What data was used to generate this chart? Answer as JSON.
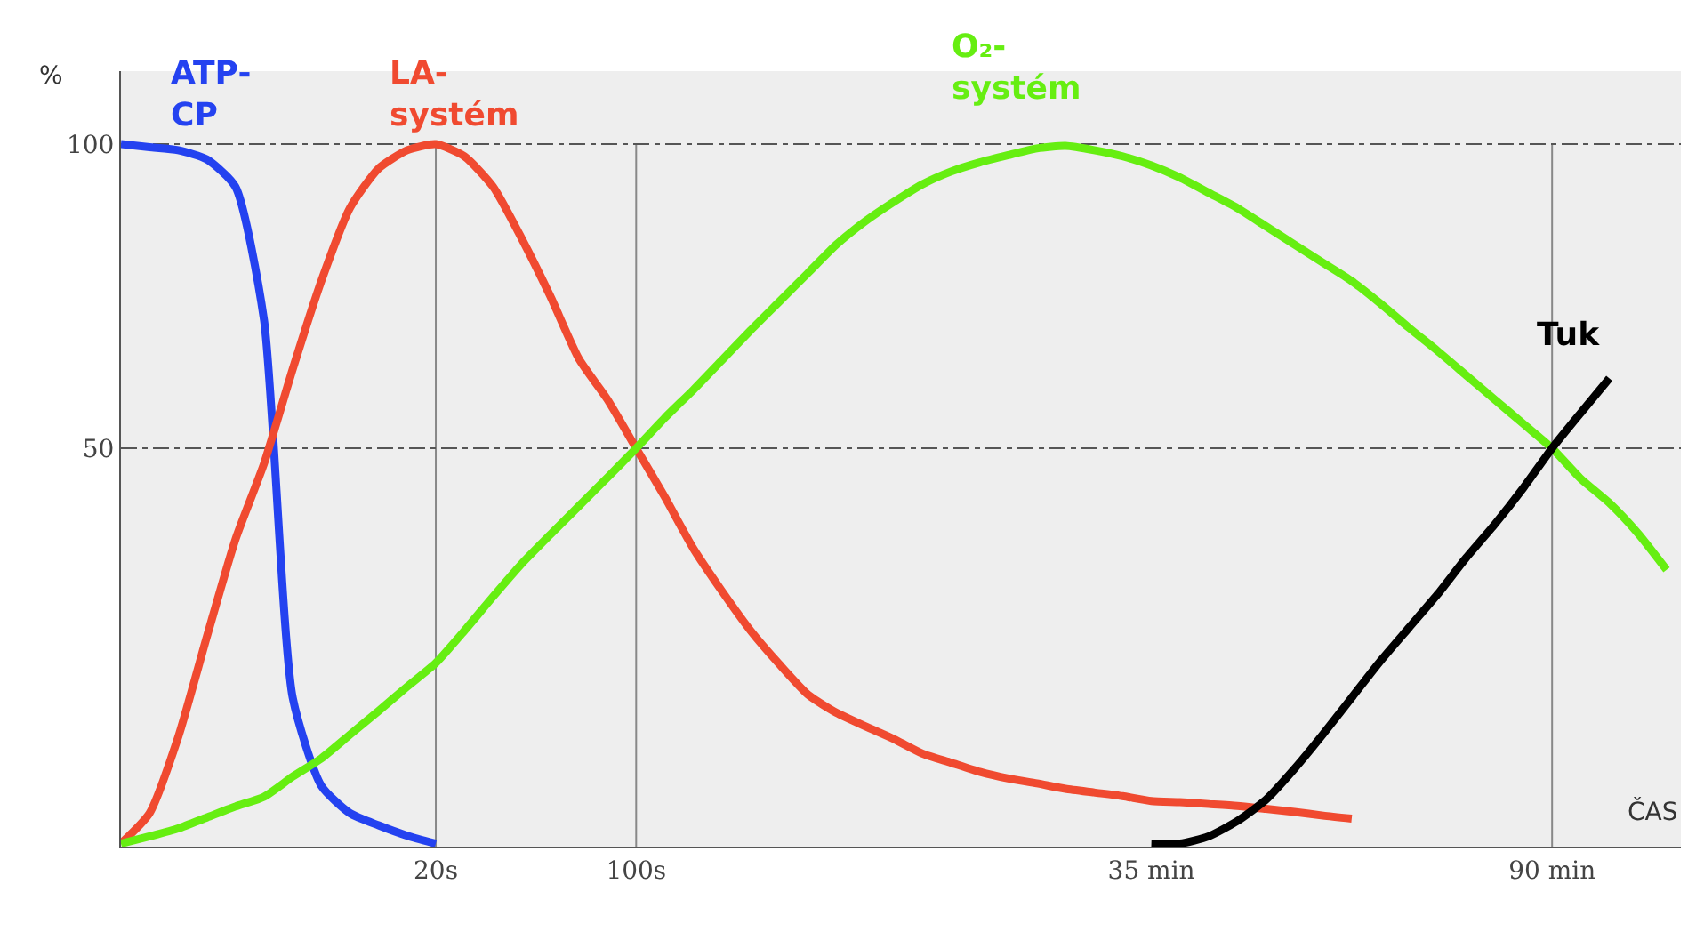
{
  "chart_data": {
    "type": "line",
    "xlabel": "ČAS",
    "ylabel": "%",
    "categories": [
      null,
      null,
      null,
      null,
      null,
      null,
      null,
      null,
      null,
      null,
      null,
      "20s",
      null,
      null,
      null,
      null,
      null,
      null,
      "100s",
      null,
      null,
      null,
      null,
      null,
      null,
      null,
      null,
      null,
      null,
      null,
      null,
      null,
      null,
      null,
      null,
      null,
      "35 min",
      null,
      null,
      null,
      null,
      null,
      null,
      null,
      null,
      null,
      null,
      null,
      null,
      null,
      "90 min",
      null,
      null,
      null,
      null
    ],
    "ylim": [
      -15.5,
      112
    ],
    "yticks": [
      50,
      100
    ],
    "grid": "y",
    "line_style": "solid",
    "marker": "none",
    "legend": false,
    "ref_lines": [
      {
        "axis": "x",
        "value": "20s",
        "color": "#888888"
      },
      {
        "axis": "x",
        "value": "100s",
        "color": "#888888"
      },
      {
        "axis": "x",
        "value": "90 min",
        "color": "#888888"
      }
    ],
    "series": [
      {
        "name": "ATP-CP",
        "color": "#2442f0",
        "values": [
          100,
          99.5,
          99,
          97.5,
          93,
          71,
          9,
          -5.5,
          -10,
          -12,
          -13.7,
          -15,
          null,
          null,
          null,
          null,
          null,
          null,
          null,
          null,
          null,
          null,
          null,
          null,
          null,
          null,
          null,
          null,
          null,
          null,
          null,
          null,
          null,
          null,
          null,
          null,
          null,
          null,
          null,
          null,
          null,
          null,
          null,
          null,
          null,
          null,
          null,
          null,
          null,
          null,
          null,
          null,
          null,
          null,
          null
        ]
      },
      {
        "name": "LA-systém",
        "color": "#f04a30",
        "values": [
          -15,
          -10,
          2.5,
          19,
          35,
          47.5,
          63,
          77.5,
          89.5,
          96,
          99,
          100,
          98,
          93,
          84.5,
          75,
          64.7,
          58,
          50,
          42,
          33.5,
          26.5,
          20,
          14.5,
          9.5,
          6.5,
          4.3,
          2.2,
          -0.2,
          -1.7,
          -3.2,
          -4.3,
          -5.1,
          -6,
          -6.6,
          -7.2,
          -8,
          -8.2,
          -8.5,
          -8.8,
          -9.3,
          -9.8,
          -10.4,
          -10.9,
          null,
          null,
          null,
          null,
          null,
          null,
          null,
          null,
          null,
          null,
          null
        ]
      },
      {
        "name": "O₂-systém",
        "color": "#66ee11",
        "values": [
          -15,
          -13.8,
          -12.5,
          -10.7,
          -8.9,
          -7.3,
          -4,
          -1,
          2.9,
          6.8,
          10.8,
          14.7,
          20,
          25.6,
          31,
          35.8,
          40.5,
          45.2,
          50,
          55,
          59.6,
          64.5,
          69.4,
          74.1,
          78.8,
          83.5,
          87.3,
          90.5,
          93.4,
          95.5,
          97,
          98.2,
          99.3,
          99.7,
          99,
          98,
          96.5,
          94.5,
          92,
          89.5,
          86.5,
          83.5,
          80.5,
          77.5,
          73.8,
          69.8,
          66,
          62,
          58,
          54,
          50,
          45,
          41,
          36,
          30
        ]
      },
      {
        "name": "Tuk",
        "color": "#000000",
        "values": [
          null,
          null,
          null,
          null,
          null,
          null,
          null,
          null,
          null,
          null,
          null,
          null,
          null,
          null,
          null,
          null,
          null,
          null,
          null,
          null,
          null,
          null,
          null,
          null,
          null,
          null,
          null,
          null,
          null,
          null,
          null,
          null,
          null,
          null,
          null,
          null,
          -15,
          -15,
          -13.8,
          -11.3,
          -7.8,
          -2.7,
          3,
          9,
          15,
          20.5,
          26,
          32,
          37.5,
          43.5,
          50,
          55.8,
          61.5,
          null,
          null
        ]
      }
    ]
  }
}
